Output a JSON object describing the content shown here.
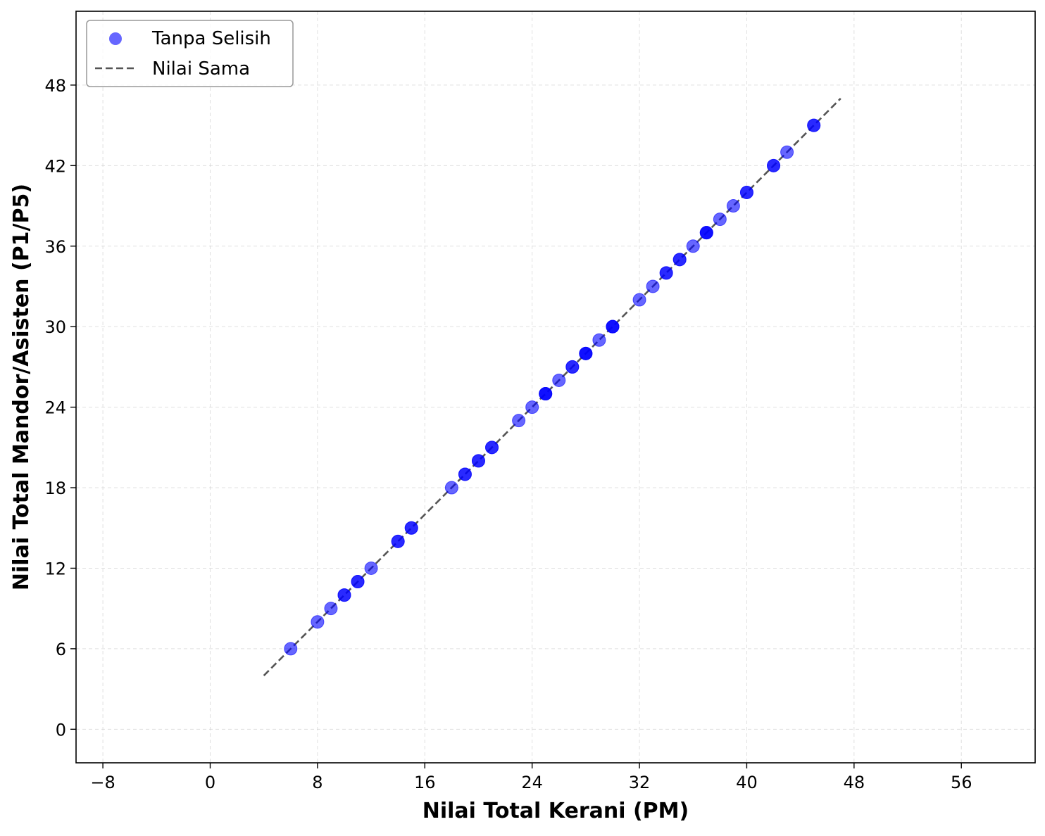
{
  "chart_data": {
    "type": "scatter",
    "title": "",
    "xlabel": "Nilai Total Kerani (PM)",
    "ylabel": "Nilai Total Mandor/Asisten (P1/P5)",
    "xlim": [
      -10,
      61.5
    ],
    "ylim": [
      -2.5,
      53.5
    ],
    "xticks": [
      -8,
      0,
      8,
      16,
      24,
      32,
      40,
      48,
      56
    ],
    "xtick_labels": [
      "−8",
      "0",
      "8",
      "16",
      "24",
      "32",
      "40",
      "48",
      "56"
    ],
    "yticks": [
      0,
      6,
      12,
      18,
      24,
      30,
      36,
      42,
      48
    ],
    "ytick_labels": [
      "0",
      "6",
      "12",
      "18",
      "24",
      "30",
      "36",
      "42",
      "48"
    ],
    "grid": true,
    "legend_position": "top-left",
    "series": [
      {
        "name": "Tanpa Selisih",
        "kind": "scatter",
        "color": "#0000ff",
        "alpha": 0.6,
        "x": [
          6,
          8,
          9,
          10,
          10,
          11,
          11,
          12,
          14,
          14,
          15,
          15,
          18,
          19,
          19,
          20,
          20,
          21,
          21,
          23,
          24,
          25,
          25,
          25,
          26,
          27,
          27,
          28,
          28,
          28,
          29,
          30,
          30,
          30,
          32,
          33,
          34,
          34,
          35,
          35,
          36,
          37,
          37,
          37,
          38,
          39,
          40,
          40,
          42,
          42,
          43,
          45,
          45
        ],
        "y": [
          6,
          8,
          9,
          10,
          10,
          11,
          11,
          12,
          14,
          14,
          15,
          15,
          18,
          19,
          19,
          20,
          20,
          21,
          21,
          23,
          24,
          25,
          25,
          25,
          26,
          27,
          27,
          28,
          28,
          28,
          29,
          30,
          30,
          30,
          32,
          33,
          34,
          34,
          35,
          35,
          36,
          37,
          37,
          37,
          38,
          39,
          40,
          40,
          42,
          42,
          43,
          45,
          45
        ]
      },
      {
        "name": "Nilai Sama",
        "kind": "line",
        "style": "dashed",
        "color": "#555555",
        "x": [
          4,
          47
        ],
        "y": [
          4,
          47
        ]
      }
    ]
  }
}
